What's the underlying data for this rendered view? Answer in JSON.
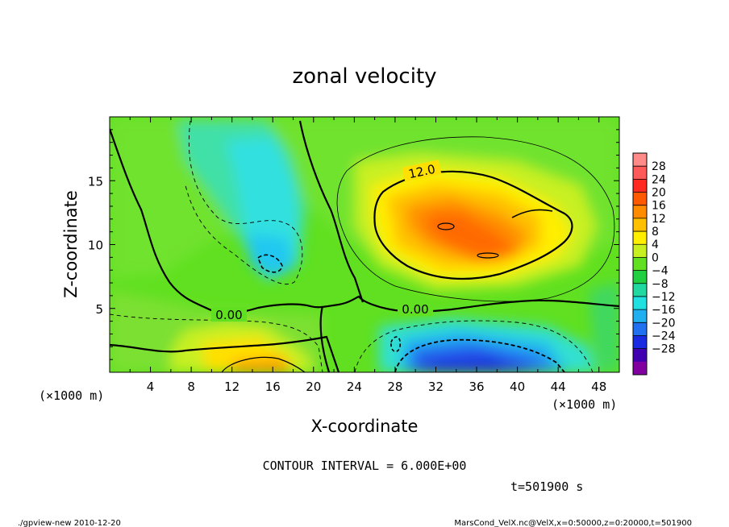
{
  "chart_data": {
    "type": "heatmap",
    "title": "zonal velocity",
    "xlabel": "X-coordinate",
    "ylabel": "Z-coordinate",
    "x_unit": "(×1000 m)",
    "y_unit": "(×1000 m)",
    "xlim": [
      0,
      50
    ],
    "ylim": [
      0,
      20
    ],
    "x_ticks": [
      "4",
      "8",
      "12",
      "16",
      "20",
      "24",
      "28",
      "32",
      "36",
      "40",
      "44",
      "48"
    ],
    "y_ticks": [
      "5",
      "10",
      "15"
    ],
    "colorbar": {
      "labels": [
        "28",
        "24",
        "20",
        "16",
        "12",
        "8",
        "4",
        "0",
        "−4",
        "−8",
        "−12",
        "−16",
        "−20",
        "−24",
        "−28"
      ],
      "colors": [
        "#ff8a8a",
        "#ff5a5a",
        "#ff2a20",
        "#ff5a00",
        "#ff8c00",
        "#ffc000",
        "#ffee00",
        "#c8f020",
        "#60e020",
        "#20d040",
        "#20d8a0",
        "#20e0e0",
        "#20b0f0",
        "#2070f0",
        "#1a2ae0",
        "#4000b0",
        "#8000a0"
      ]
    },
    "contour_labels": [
      "12.0",
      "0.00",
      "0.00"
    ],
    "contour_interval": "CONTOUR INTERVAL = 6.000E+00",
    "time": "t=501900 s"
  },
  "footer": {
    "left": "./gpview-new   2010-12-20",
    "right": "MarsCond_VelX.nc@VelX,x=0:50000,z=0:20000,t=501900"
  }
}
